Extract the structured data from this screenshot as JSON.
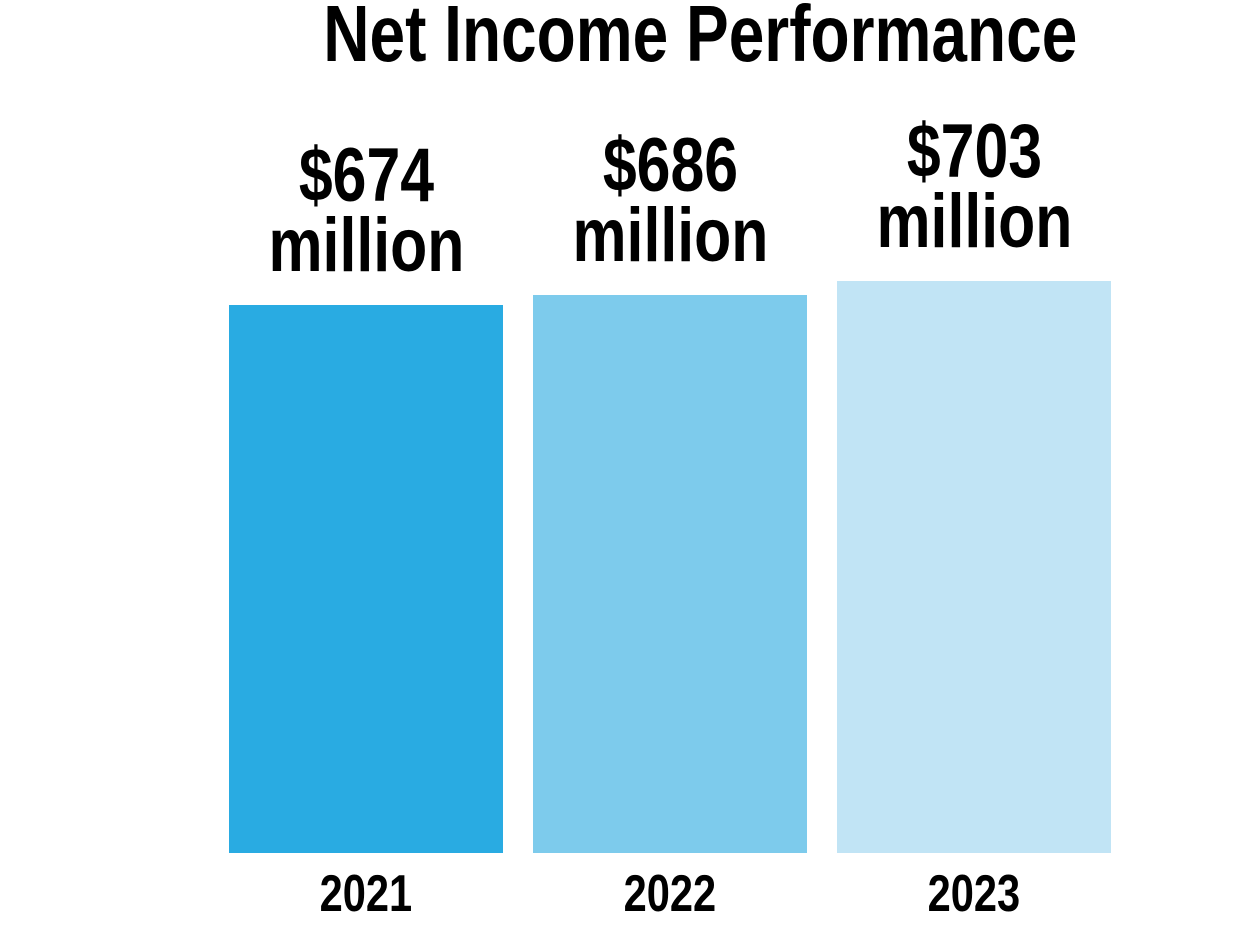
{
  "page": {
    "background_color": "#ffffff",
    "text_color": "#000000"
  },
  "chart_data": {
    "type": "bar",
    "title": "Net Income Performance",
    "categories": [
      "2021",
      "2022",
      "2023"
    ],
    "values": [
      674,
      686,
      703
    ],
    "value_labels": [
      [
        "$674",
        "million"
      ],
      [
        "$686",
        "million"
      ],
      [
        "$703",
        "million"
      ]
    ],
    "unit_label": "million",
    "currency": "$",
    "bar_colors": [
      "#29ABE2",
      "#7DCBEC",
      "#C1E4F5"
    ],
    "xlabel": "",
    "ylabel": "",
    "ylim": [
      0,
      703
    ],
    "grid": false,
    "legend": null,
    "orientation": "vertical",
    "value_label_position": "above-bar",
    "category_label_position": "below-bar"
  }
}
